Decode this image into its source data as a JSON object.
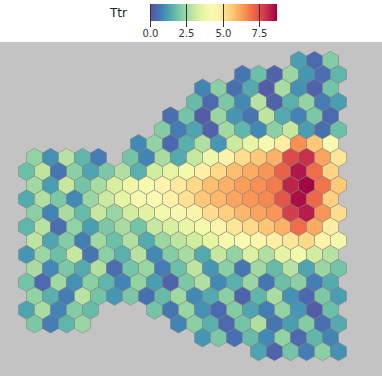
{
  "chart_data": {
    "type": "spatial",
    "tick_labels": false,
    "colorbar": {
      "title": "Ttr",
      "range": [
        0,
        8.7
      ],
      "ticks": [
        {
          "value": 0,
          "label": "0.0"
        },
        {
          "value": 2.5,
          "label": "2.5"
        },
        {
          "value": 5,
          "label": "5.0"
        },
        {
          "value": 7.5,
          "label": "7.5"
        }
      ]
    },
    "values": [
      [
        null,
        null,
        null,
        null,
        null,
        null,
        null,
        null,
        null,
        null,
        null,
        null,
        null,
        null,
        null,
        null,
        null,
        1.2,
        0.4,
        2.1
      ],
      [
        null,
        null,
        null,
        null,
        null,
        null,
        null,
        null,
        null,
        null,
        null,
        null,
        null,
        0.6,
        1.8,
        0.3,
        2.4,
        1.1,
        0.5,
        1.6
      ],
      [
        null,
        null,
        null,
        null,
        null,
        null,
        null,
        null,
        null,
        null,
        null,
        0.8,
        2.2,
        0.5,
        1.4,
        0.2,
        2.6,
        1.0,
        0.3,
        1.9
      ],
      [
        null,
        null,
        null,
        null,
        null,
        null,
        null,
        null,
        null,
        null,
        1.7,
        0.4,
        2.0,
        0.9,
        2.8,
        0.3,
        1.5,
        2.3,
        0.7,
        1.2
      ],
      [
        null,
        null,
        null,
        null,
        null,
        null,
        null,
        null,
        null,
        0.5,
        1.9,
        0.2,
        2.4,
        1.1,
        0.6,
        2.9,
        1.4,
        0.8,
        2.0,
        0.4
      ],
      [
        null,
        null,
        null,
        null,
        null,
        null,
        null,
        null,
        2.1,
        0.7,
        1.3,
        0.3,
        2.5,
        1.6,
        0.9,
        2.2,
        3.0,
        1.2,
        0.5,
        1.8
      ],
      [
        null,
        null,
        null,
        null,
        null,
        null,
        null,
        0.9,
        2.3,
        0.4,
        1.5,
        2.7,
        1.1,
        3.1,
        3.6,
        4.0,
        4.8,
        6.5,
        5.6,
        4.2
      ],
      [
        2.3,
        1.0,
        2.8,
        1.6,
        0.7,
        null,
        1.9,
        0.8,
        2.6,
        1.4,
        3.0,
        3.8,
        4.6,
        5.2,
        5.6,
        6.0,
        7.6,
        8.0,
        6.2,
        5.0
      ],
      [
        1.8,
        2.9,
        0.6,
        2.2,
        1.3,
        2.0,
        2.7,
        1.5,
        3.2,
        3.6,
        4.0,
        4.7,
        5.3,
        5.8,
        6.1,
        6.4,
        7.2,
        8.4,
        7.0,
        5.4
      ],
      [
        2.5,
        1.2,
        3.0,
        1.9,
        2.6,
        3.3,
        3.8,
        4.1,
        4.5,
        4.9,
        5.3,
        5.8,
        6.0,
        6.3,
        6.5,
        6.8,
        8.2,
        8.6,
        6.9,
        5.6
      ],
      [
        1.4,
        2.7,
        2.0,
        0.9,
        2.4,
        3.1,
        3.6,
        4.0,
        4.3,
        4.7,
        5.1,
        5.6,
        5.9,
        6.2,
        6.4,
        6.6,
        7.4,
        8.5,
        7.1,
        5.5
      ],
      [
        2.2,
        0.8,
        2.6,
        1.7,
        3.0,
        2.4,
        3.2,
        3.5,
        3.9,
        4.2,
        4.6,
        5.2,
        5.5,
        5.9,
        6.2,
        6.4,
        7.8,
        8.3,
        6.4,
        5.2
      ],
      [
        1.6,
        2.8,
        0.5,
        2.3,
        1.2,
        2.0,
        2.6,
        1.9,
        3.0,
        3.3,
        3.7,
        4.1,
        4.6,
        5.0,
        5.3,
        5.7,
        6.0,
        7.0,
        6.1,
        4.8
      ],
      [
        2.9,
        1.3,
        2.1,
        0.7,
        2.5,
        1.8,
        2.7,
        1.4,
        2.4,
        2.9,
        3.2,
        3.6,
        4.0,
        4.3,
        4.5,
        4.8,
        5.0,
        5.3,
        4.6,
        3.9
      ],
      [
        1.1,
        2.4,
        1.8,
        3.0,
        0.6,
        2.2,
        1.5,
        2.8,
        0.9,
        2.1,
        2.6,
        1.4,
        3.0,
        2.3,
        3.4,
        2.7,
        3.6,
        3.9,
        3.2,
        2.8
      ],
      [
        2.6,
        0.9,
        2.0,
        1.4,
        2.7,
        0.5,
        1.9,
        2.4,
        0.7,
        1.8,
        2.9,
        1.1,
        2.2,
        0.6,
        2.5,
        1.7,
        2.8,
        1.3,
        2.4,
        1.9
      ],
      [
        1.9,
        0.4,
        2.5,
        1.0,
        2.2,
        1.6,
        0.8,
        2.3,
        1.2,
        0.3,
        2.0,
        2.7,
        0.9,
        1.5,
        2.4,
        0.6,
        1.8,
        2.2,
        0.7,
        1.4
      ],
      [
        2.3,
        1.5,
        0.7,
        2.8,
        1.9,
        1.1,
        2.0,
        0.5,
        1.7,
        2.5,
        0.9,
        1.4,
        2.2,
        0.3,
        1.6,
        2.6,
        1.0,
        0.4,
        2.0,
        1.2
      ],
      [
        1.3,
        2.6,
        0.8,
        2.1,
        1.7,
        null,
        null,
        null,
        1.9,
        0.6,
        2.4,
        1.0,
        0.4,
        2.1,
        1.3,
        0.7,
        2.3,
        1.1,
        0.2,
        1.8
      ],
      [
        2.0,
        0.7,
        1.6,
        2.4,
        null,
        null,
        null,
        null,
        null,
        0.8,
        2.2,
        1.5,
        0.4,
        1.9,
        2.7,
        0.6,
        1.2,
        2.1,
        0.5,
        1.4
      ],
      [
        null,
        null,
        null,
        null,
        null,
        null,
        null,
        null,
        null,
        null,
        null,
        1.1,
        2.0,
        0.5,
        1.7,
        0.9,
        2.3,
        0.4,
        1.6,
        0.8
      ],
      [
        null,
        null,
        null,
        null,
        null,
        null,
        null,
        null,
        null,
        null,
        null,
        null,
        null,
        null,
        1.3,
        0.3,
        1.9,
        0.7,
        2.2,
        1.0
      ]
    ]
  }
}
